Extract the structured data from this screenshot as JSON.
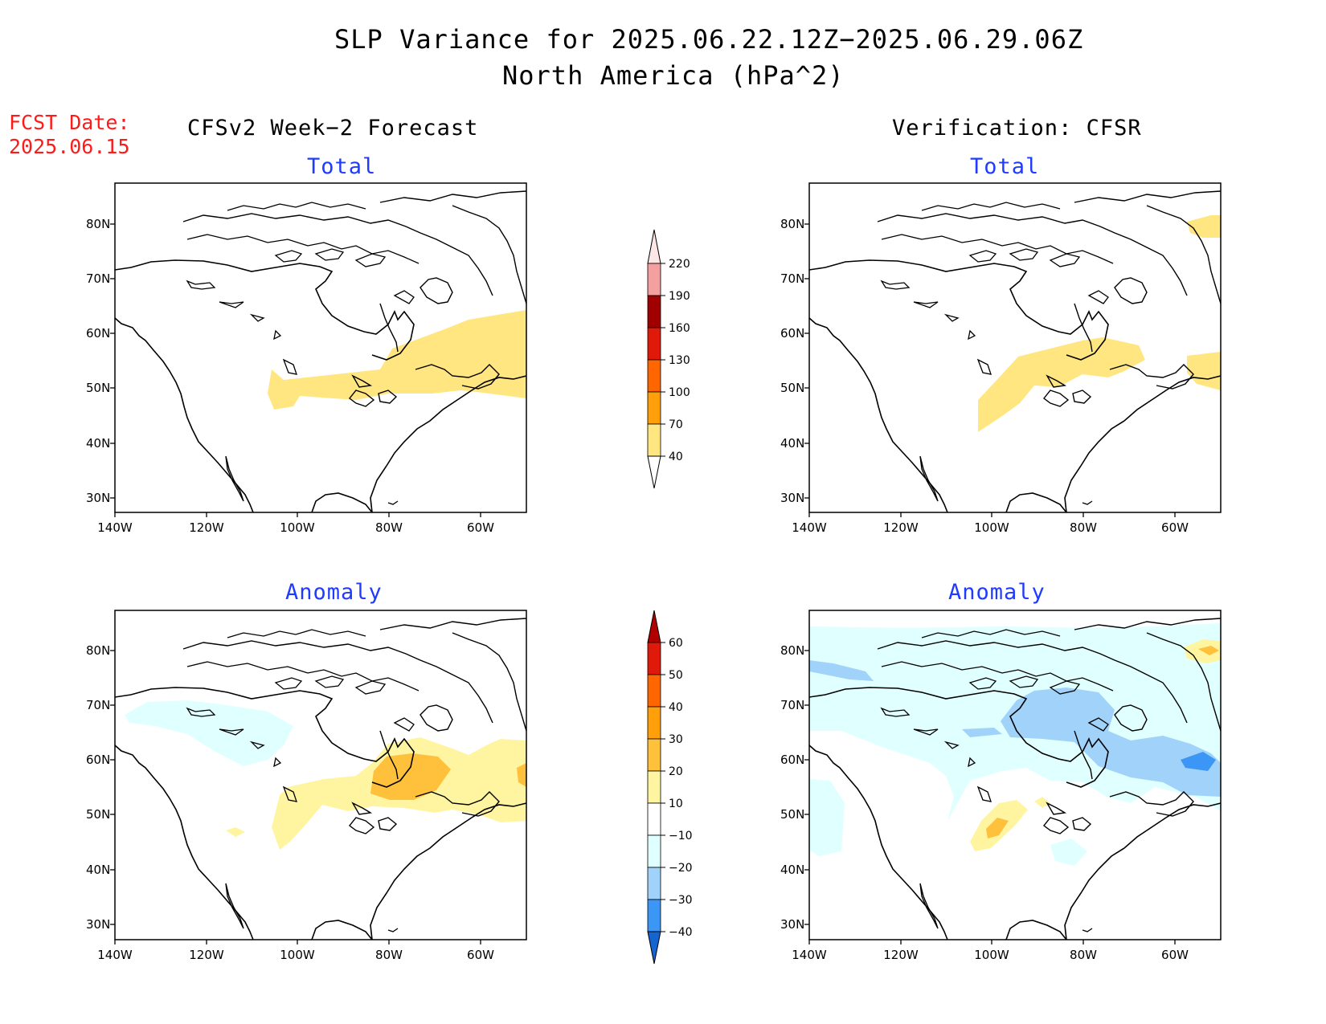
{
  "title_line1": "SLP Variance for 2025.06.22.12Z−2025.06.29.06Z",
  "title_line2": "North America (hPa^2)",
  "fcst_label": "FCST Date:",
  "fcst_value": "2025.06.15",
  "left_header": "CFSv2 Week−2 Forecast",
  "right_header": "Verification: CFSR",
  "panel_titles": {
    "forecast_total": "Total",
    "verification_total": "Total",
    "forecast_anomaly": "Anomaly",
    "verification_anomaly": "Anomaly"
  },
  "axis": {
    "lat_labels": [
      "80N",
      "70N",
      "60N",
      "50N",
      "40N",
      "30N"
    ],
    "lon_labels": [
      "140W",
      "120W",
      "100W",
      "80W",
      "60W"
    ]
  },
  "colorbar_total": {
    "labels": [
      "220",
      "190",
      "160",
      "130",
      "100",
      "70",
      "40"
    ],
    "colors": [
      "#f4a0a0",
      "#a00000",
      "#e01a0a",
      "#ff6600",
      "#ffa00a",
      "#ffe680"
    ]
  },
  "colorbar_anomaly": {
    "labels": [
      "60",
      "50",
      "40",
      "30",
      "20",
      "10",
      "−10",
      "−20",
      "−30",
      "−40"
    ],
    "colors": [
      "#b00000",
      "#e01a0a",
      "#ff6600",
      "#ffa00a",
      "#ffc03c",
      "#fff5a0",
      "#ffffff",
      "#e0ffff",
      "#a0d2fa",
      "#3c96f5",
      "#1464d2"
    ]
  },
  "shading_colors": {
    "total_40_70": "#ffe680",
    "anom_10_20": "#fff5a0",
    "anom_20_30": "#ffc03c",
    "anom_m10_m20": "#e0ffff",
    "anom_m20_m30": "#a0d2fa",
    "anom_m30_m40": "#3c96f5"
  }
}
